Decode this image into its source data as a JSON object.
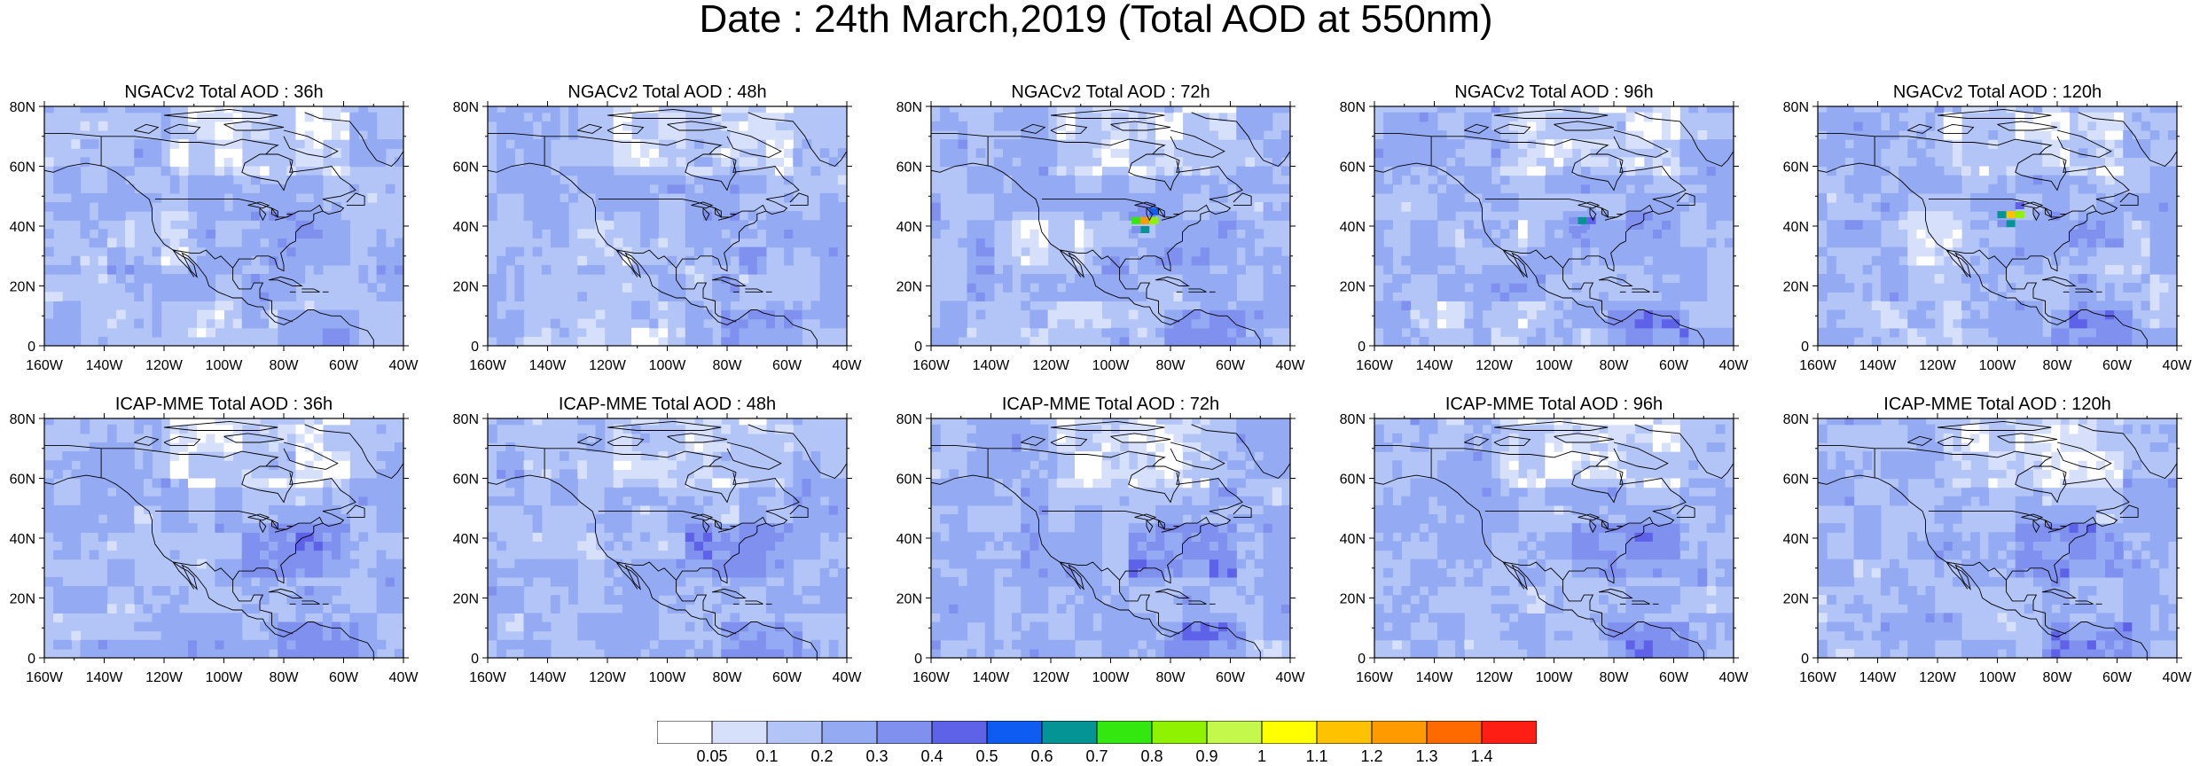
{
  "title": "Date : 24th March,2019 (Total AOD at 550nm)",
  "panels": [
    {
      "title": "NGACv2 Total AOD : 36h",
      "model": "NGACv2",
      "lead": "36h"
    },
    {
      "title": "NGACv2 Total AOD : 48h",
      "model": "NGACv2",
      "lead": "48h"
    },
    {
      "title": "NGACv2 Total AOD : 72h",
      "model": "NGACv2",
      "lead": "72h",
      "hotspot": {
        "lon": -90,
        "lat": 41,
        "max_aod": 1.2
      }
    },
    {
      "title": "NGACv2 Total AOD : 96h",
      "model": "NGACv2",
      "lead": "96h",
      "hotspot": {
        "lon": -92,
        "lat": 41,
        "max_aod": 0.6
      }
    },
    {
      "title": "NGACv2 Total AOD : 120h",
      "model": "NGACv2",
      "lead": "120h",
      "hotspot": {
        "lon": -97,
        "lat": 43,
        "max_aod": 1.1
      }
    },
    {
      "title": "ICAP-MME Total AOD : 36h",
      "model": "ICAP-MME",
      "lead": "36h"
    },
    {
      "title": "ICAP-MME Total AOD : 48h",
      "model": "ICAP-MME",
      "lead": "48h"
    },
    {
      "title": "ICAP-MME Total AOD : 72h",
      "model": "ICAP-MME",
      "lead": "72h"
    },
    {
      "title": "ICAP-MME Total AOD : 96h",
      "model": "ICAP-MME",
      "lead": "96h"
    },
    {
      "title": "ICAP-MME Total AOD : 120h",
      "model": "ICAP-MME",
      "lead": "120h"
    }
  ],
  "axes": {
    "lat_ticks": [
      "80N",
      "60N",
      "40N",
      "20N",
      "0"
    ],
    "lon_ticks": [
      "160W",
      "140W",
      "120W",
      "100W",
      "80W",
      "60W",
      "40W"
    ]
  },
  "colorbar": {
    "labels": [
      "0.05",
      "0.1",
      "0.2",
      "0.3",
      "0.4",
      "0.5",
      "0.6",
      "0.7",
      "0.8",
      "0.9",
      "1",
      "1.1",
      "1.2",
      "1.3",
      "1.4"
    ],
    "colors": [
      "#ffffff",
      "#d6e0fb",
      "#b3c4f6",
      "#94abf3",
      "#7f90ef",
      "#5e62e8",
      "#0f5cf2",
      "#049495",
      "#33e80f",
      "#8ef200",
      "#c4f84a",
      "#ffff00",
      "#ffc200",
      "#ff9a00",
      "#ff6a00",
      "#ff1e13"
    ]
  }
}
